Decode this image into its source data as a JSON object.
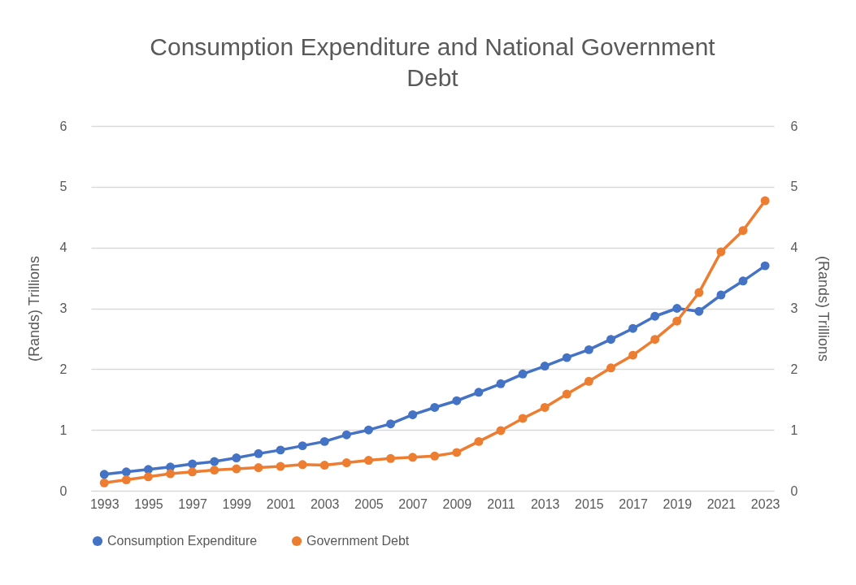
{
  "chart_data": {
    "type": "line",
    "title": "Consumption Expenditure and National Government Debt",
    "ylabel": "(Rands) Trillions",
    "y2label": "(Rands) Trillions",
    "x": [
      1993,
      1994,
      1995,
      1996,
      1997,
      1998,
      1999,
      2000,
      2001,
      2002,
      2003,
      2004,
      2005,
      2006,
      2007,
      2008,
      2009,
      2010,
      2011,
      2012,
      2013,
      2014,
      2015,
      2016,
      2017,
      2018,
      2019,
      2020,
      2021,
      2022,
      2023
    ],
    "xlim": [
      1992.4,
      2023.4
    ],
    "xticks": [
      1993,
      1995,
      1997,
      1999,
      2001,
      2003,
      2005,
      2007,
      2009,
      2011,
      2013,
      2015,
      2017,
      2019,
      2021,
      2023
    ],
    "ylim": [
      0,
      6
    ],
    "yticks": [
      0,
      1,
      2,
      3,
      4,
      5,
      6
    ],
    "y2lim": [
      0,
      6
    ],
    "y2ticks": [
      0,
      1,
      2,
      3,
      4,
      5,
      6
    ],
    "series": [
      {
        "name": "Consumption Expenditure",
        "color": "#4472c4",
        "values": [
          0.27,
          0.31,
          0.35,
          0.39,
          0.44,
          0.48,
          0.54,
          0.61,
          0.67,
          0.74,
          0.81,
          0.92,
          1.0,
          1.1,
          1.25,
          1.37,
          1.48,
          1.62,
          1.76,
          1.92,
          2.05,
          2.19,
          2.32,
          2.49,
          2.67,
          2.87,
          3.0,
          2.95,
          3.22,
          3.45,
          3.7
        ]
      },
      {
        "name": "Government Debt",
        "color": "#ed7d31",
        "values": [
          0.13,
          0.18,
          0.23,
          0.28,
          0.31,
          0.34,
          0.36,
          0.38,
          0.4,
          0.43,
          0.42,
          0.46,
          0.5,
          0.53,
          0.55,
          0.57,
          0.63,
          0.81,
          0.99,
          1.19,
          1.37,
          1.59,
          1.8,
          2.02,
          2.23,
          2.49,
          2.79,
          3.26,
          3.93,
          4.28,
          4.77
        ]
      }
    ],
    "grid": "y",
    "legend": "bottom",
    "marker": "circle",
    "line_style": "solid"
  }
}
